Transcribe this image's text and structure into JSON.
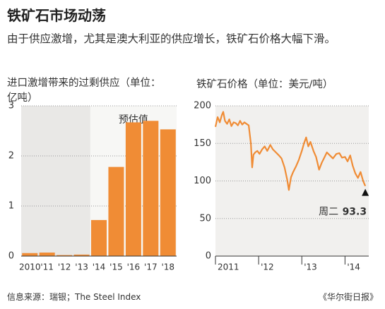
{
  "title": "铁矿石市场动荡",
  "subtitle": "由于供应激增，尤其是澳大利亚的供应增长，铁矿石价格大幅下滑。",
  "source": "信息来源：瑞银；The Steel Index",
  "credit": "《华尔街日报》",
  "chart_data": [
    {
      "type": "bar",
      "title": "进口激增带来的过剩供应（单位：亿吨）",
      "categories": [
        "2010",
        "'11",
        "'12",
        "'13",
        "'14",
        "'15",
        "'16",
        "'17",
        "'18"
      ],
      "values": [
        0.06,
        0.07,
        0.02,
        0.03,
        0.72,
        1.78,
        2.67,
        2.7,
        2.53
      ],
      "color": "#f08c35",
      "annotation": "预估值",
      "ylim": [
        0,
        3
      ],
      "yticks": [
        0,
        1,
        2,
        3
      ],
      "grid": true
    },
    {
      "type": "line",
      "title": "铁矿石价格（单位：美元/吨）",
      "x": [
        2011.0,
        2011.05,
        2011.1,
        2011.15,
        2011.18,
        2011.22,
        2011.27,
        2011.32,
        2011.37,
        2011.42,
        2011.47,
        2011.52,
        2011.57,
        2011.62,
        2011.67,
        2011.72,
        2011.77,
        2011.82,
        2011.85,
        2011.88,
        2011.92,
        2011.97,
        2012.02,
        2012.08,
        2012.14,
        2012.2,
        2012.27,
        2012.33,
        2012.4,
        2012.47,
        2012.53,
        2012.6,
        2012.66,
        2012.7,
        2012.75,
        2012.8,
        2012.87,
        2012.93,
        2013.0,
        2013.05,
        2013.1,
        2013.15,
        2013.2,
        2013.27,
        2013.33,
        2013.4,
        2013.46,
        2013.52,
        2013.58,
        2013.65,
        2013.72,
        2013.8,
        2013.87,
        2013.93,
        2014.0,
        2014.06,
        2014.12,
        2014.18,
        2014.24,
        2014.3,
        2014.36,
        2014.42,
        2014.47
      ],
      "series": [
        {
          "name": "铁矿石价格",
          "color": "#f08c35",
          "values": [
            172,
            185,
            178,
            188,
            192,
            180,
            176,
            182,
            173,
            178,
            177,
            174,
            180,
            175,
            178,
            176,
            174,
            150,
            118,
            135,
            138,
            140,
            136,
            142,
            146,
            140,
            148,
            142,
            138,
            134,
            130,
            118,
            102,
            88,
            105,
            112,
            120,
            128,
            140,
            150,
            158,
            146,
            152,
            140,
            132,
            115,
            124,
            131,
            138,
            134,
            130,
            136,
            137,
            131,
            132,
            126,
            134,
            120,
            110,
            104,
            112,
            100,
            93.3
          ]
        }
      ],
      "end_label": "周二",
      "xlim": [
        2011,
        2014.55
      ],
      "xticks": [
        {
          "value": 2011,
          "label": "2011"
        },
        {
          "value": 2012,
          "label": "'12"
        },
        {
          "value": 2013,
          "label": "'13"
        },
        {
          "value": 2014,
          "label": "'14"
        }
      ],
      "ylim": [
        0,
        200
      ],
      "yticks": [
        0,
        50,
        100,
        150,
        200
      ],
      "grid": true
    }
  ]
}
